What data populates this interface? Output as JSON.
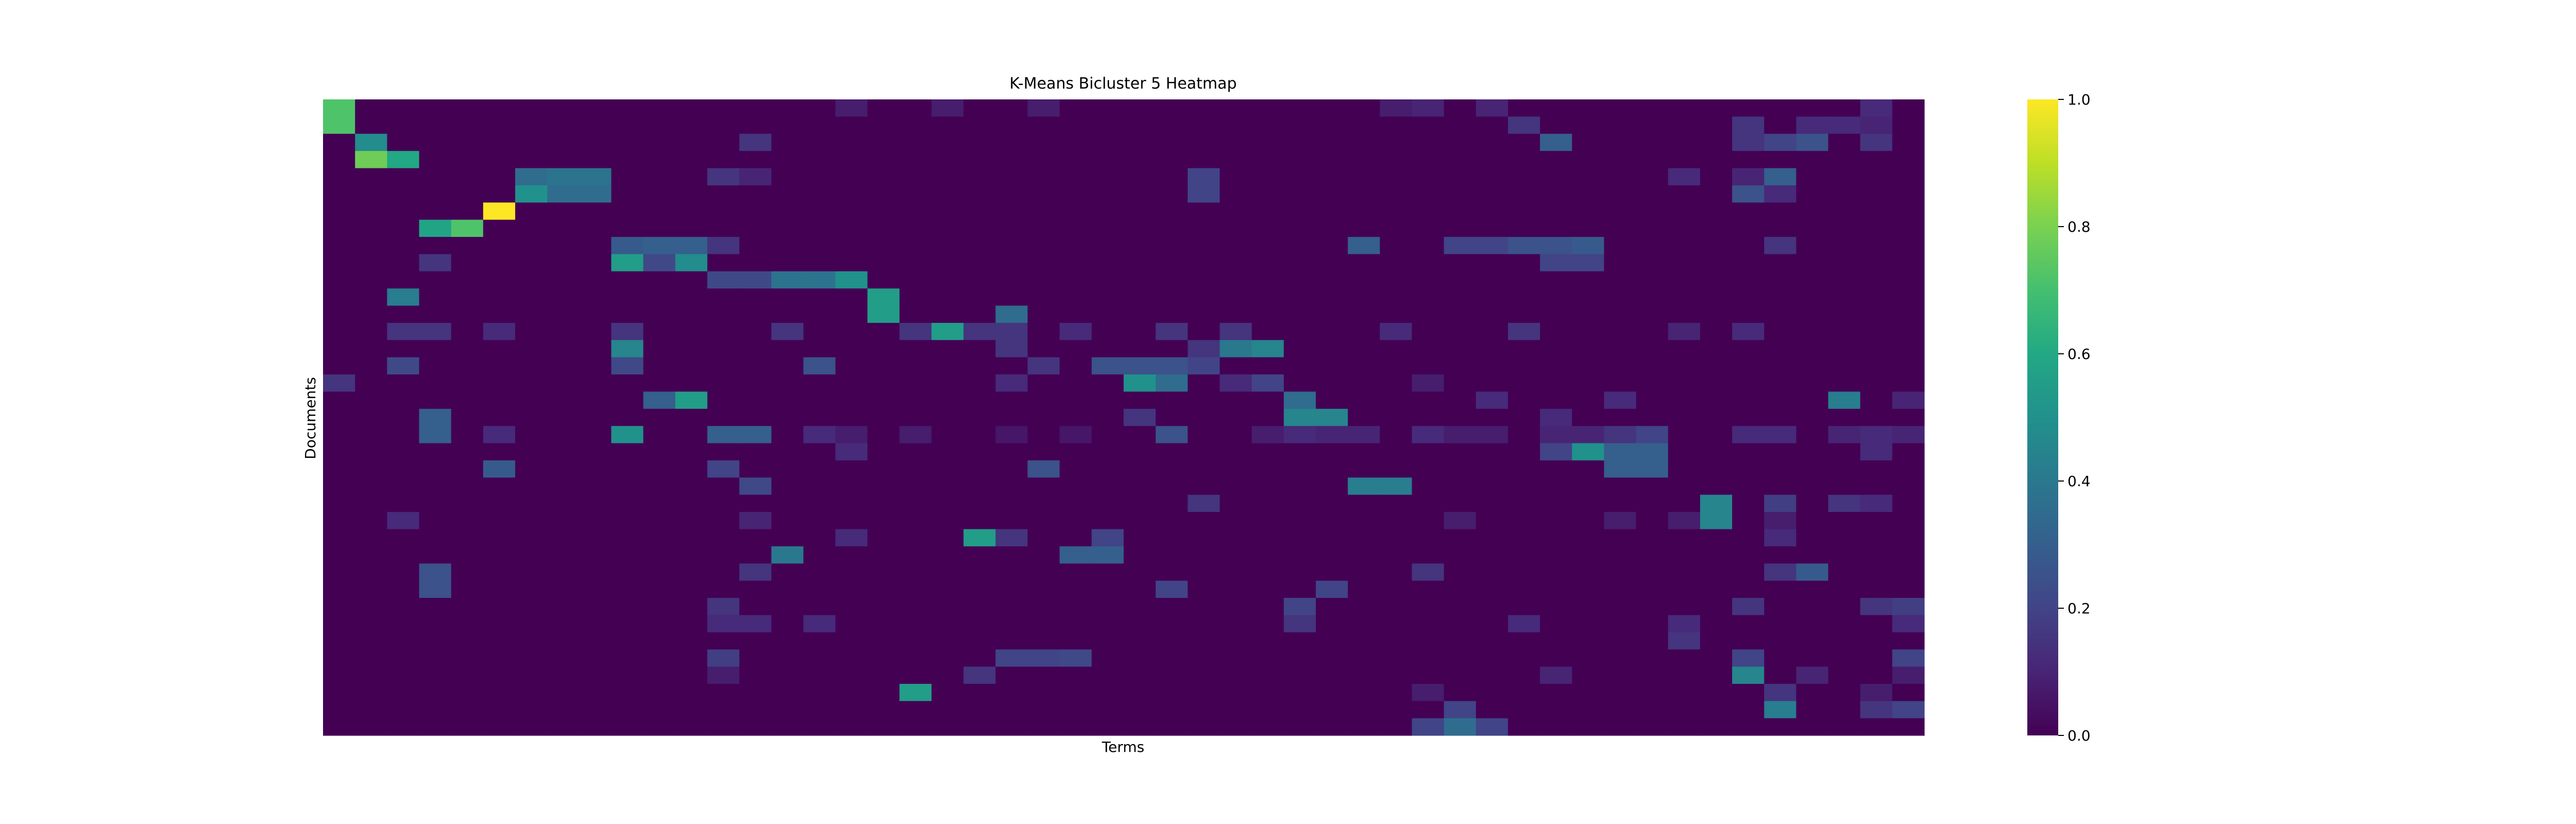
{
  "chart_data": {
    "type": "heatmap",
    "title": "K-Means Bicluster 5 Heatmap",
    "xlabel": "Terms",
    "ylabel": "Documents",
    "n_rows": 37,
    "n_cols": 50,
    "x_ticks": "none",
    "y_ticks": "none",
    "colormap": "viridis",
    "colorbar": {
      "range": [
        0.0,
        1.0
      ],
      "ticks": [
        "0.0",
        "0.2",
        "0.4",
        "0.6",
        "0.8",
        "1.0"
      ]
    },
    "default_value": 0.0,
    "cells": [
      [
        0,
        0,
        0.72
      ],
      [
        1,
        0,
        0.72
      ],
      [
        0,
        16,
        0.08
      ],
      [
        0,
        19,
        0.08
      ],
      [
        0,
        22,
        0.08
      ],
      [
        0,
        33,
        0.08
      ],
      [
        0,
        34,
        0.1
      ],
      [
        0,
        36,
        0.1
      ],
      [
        0,
        48,
        0.12
      ],
      [
        1,
        37,
        0.15
      ],
      [
        1,
        44,
        0.15
      ],
      [
        1,
        46,
        0.12
      ],
      [
        1,
        47,
        0.12
      ],
      [
        1,
        48,
        0.1
      ],
      [
        2,
        1,
        0.48
      ],
      [
        2,
        13,
        0.15
      ],
      [
        2,
        38,
        0.3
      ],
      [
        2,
        44,
        0.15
      ],
      [
        2,
        45,
        0.2
      ],
      [
        2,
        46,
        0.25
      ],
      [
        2,
        48,
        0.15
      ],
      [
        3,
        1,
        0.78
      ],
      [
        3,
        2,
        0.6
      ],
      [
        4,
        6,
        0.35
      ],
      [
        4,
        7,
        0.38
      ],
      [
        4,
        8,
        0.38
      ],
      [
        4,
        12,
        0.15
      ],
      [
        4,
        13,
        0.1
      ],
      [
        4,
        27,
        0.2
      ],
      [
        4,
        42,
        0.12
      ],
      [
        4,
        44,
        0.1
      ],
      [
        4,
        45,
        0.3
      ],
      [
        5,
        6,
        0.5
      ],
      [
        5,
        7,
        0.35
      ],
      [
        5,
        8,
        0.35
      ],
      [
        5,
        27,
        0.2
      ],
      [
        5,
        44,
        0.25
      ],
      [
        5,
        45,
        0.12
      ],
      [
        6,
        5,
        1.0
      ],
      [
        7,
        3,
        0.58
      ],
      [
        7,
        4,
        0.72
      ],
      [
        8,
        9,
        0.28
      ],
      [
        8,
        10,
        0.3
      ],
      [
        8,
        11,
        0.3
      ],
      [
        8,
        12,
        0.15
      ],
      [
        8,
        32,
        0.3
      ],
      [
        8,
        35,
        0.2
      ],
      [
        8,
        36,
        0.2
      ],
      [
        8,
        37,
        0.25
      ],
      [
        8,
        38,
        0.25
      ],
      [
        8,
        39,
        0.28
      ],
      [
        8,
        45,
        0.15
      ],
      [
        9,
        3,
        0.15
      ],
      [
        9,
        9,
        0.55
      ],
      [
        9,
        10,
        0.22
      ],
      [
        9,
        11,
        0.48
      ],
      [
        9,
        38,
        0.2
      ],
      [
        9,
        39,
        0.2
      ],
      [
        10,
        12,
        0.22
      ],
      [
        10,
        13,
        0.22
      ],
      [
        10,
        14,
        0.38
      ],
      [
        10,
        15,
        0.38
      ],
      [
        10,
        16,
        0.5
      ],
      [
        11,
        2,
        0.42
      ],
      [
        11,
        17,
        0.55
      ],
      [
        12,
        17,
        0.55
      ],
      [
        12,
        21,
        0.35
      ],
      [
        13,
        2,
        0.15
      ],
      [
        13,
        3,
        0.15
      ],
      [
        13,
        5,
        0.12
      ],
      [
        13,
        9,
        0.15
      ],
      [
        13,
        14,
        0.15
      ],
      [
        13,
        18,
        0.15
      ],
      [
        13,
        19,
        0.55
      ],
      [
        13,
        20,
        0.15
      ],
      [
        13,
        21,
        0.15
      ],
      [
        13,
        23,
        0.12
      ],
      [
        13,
        26,
        0.15
      ],
      [
        13,
        28,
        0.15
      ],
      [
        13,
        33,
        0.12
      ],
      [
        13,
        37,
        0.15
      ],
      [
        13,
        42,
        0.1
      ],
      [
        13,
        44,
        0.12
      ],
      [
        14,
        9,
        0.45
      ],
      [
        14,
        21,
        0.15
      ],
      [
        14,
        27,
        0.15
      ],
      [
        14,
        28,
        0.4
      ],
      [
        14,
        29,
        0.45
      ],
      [
        15,
        2,
        0.22
      ],
      [
        15,
        9,
        0.22
      ],
      [
        15,
        15,
        0.25
      ],
      [
        15,
        22,
        0.15
      ],
      [
        15,
        24,
        0.25
      ],
      [
        15,
        25,
        0.25
      ],
      [
        15,
        26,
        0.25
      ],
      [
        15,
        27,
        0.2
      ],
      [
        16,
        0,
        0.15
      ],
      [
        16,
        21,
        0.12
      ],
      [
        16,
        25,
        0.5
      ],
      [
        16,
        26,
        0.35
      ],
      [
        16,
        28,
        0.12
      ],
      [
        16,
        29,
        0.2
      ],
      [
        16,
        34,
        0.08
      ],
      [
        17,
        10,
        0.3
      ],
      [
        17,
        11,
        0.55
      ],
      [
        17,
        30,
        0.35
      ],
      [
        17,
        36,
        0.12
      ],
      [
        17,
        40,
        0.12
      ],
      [
        17,
        47,
        0.42
      ],
      [
        17,
        49,
        0.1
      ],
      [
        18,
        3,
        0.3
      ],
      [
        18,
        25,
        0.15
      ],
      [
        18,
        30,
        0.45
      ],
      [
        18,
        31,
        0.45
      ],
      [
        18,
        38,
        0.12
      ],
      [
        19,
        3,
        0.3
      ],
      [
        19,
        5,
        0.12
      ],
      [
        19,
        9,
        0.5
      ],
      [
        19,
        12,
        0.3
      ],
      [
        19,
        13,
        0.3
      ],
      [
        19,
        15,
        0.12
      ],
      [
        19,
        16,
        0.08
      ],
      [
        19,
        18,
        0.08
      ],
      [
        19,
        21,
        0.06
      ],
      [
        19,
        23,
        0.06
      ],
      [
        19,
        26,
        0.25
      ],
      [
        19,
        29,
        0.08
      ],
      [
        19,
        30,
        0.12
      ],
      [
        19,
        31,
        0.1
      ],
      [
        19,
        32,
        0.1
      ],
      [
        19,
        34,
        0.12
      ],
      [
        19,
        35,
        0.08
      ],
      [
        19,
        36,
        0.08
      ],
      [
        19,
        38,
        0.1
      ],
      [
        19,
        39,
        0.1
      ],
      [
        19,
        40,
        0.15
      ],
      [
        19,
        41,
        0.2
      ],
      [
        19,
        44,
        0.12
      ],
      [
        19,
        45,
        0.12
      ],
      [
        19,
        47,
        0.1
      ],
      [
        19,
        48,
        0.12
      ],
      [
        19,
        49,
        0.1
      ],
      [
        20,
        16,
        0.12
      ],
      [
        20,
        38,
        0.2
      ],
      [
        20,
        39,
        0.5
      ],
      [
        20,
        40,
        0.3
      ],
      [
        20,
        41,
        0.3
      ],
      [
        20,
        48,
        0.12
      ],
      [
        21,
        5,
        0.28
      ],
      [
        21,
        12,
        0.2
      ],
      [
        21,
        22,
        0.25
      ],
      [
        21,
        40,
        0.3
      ],
      [
        21,
        41,
        0.3
      ],
      [
        22,
        13,
        0.22
      ],
      [
        22,
        32,
        0.42
      ],
      [
        22,
        33,
        0.42
      ],
      [
        23,
        27,
        0.15
      ],
      [
        23,
        43,
        0.45
      ],
      [
        23,
        45,
        0.18
      ],
      [
        23,
        47,
        0.15
      ],
      [
        23,
        48,
        0.12
      ],
      [
        24,
        2,
        0.12
      ],
      [
        24,
        13,
        0.1
      ],
      [
        24,
        35,
        0.08
      ],
      [
        24,
        40,
        0.08
      ],
      [
        24,
        42,
        0.08
      ],
      [
        24,
        43,
        0.45
      ],
      [
        24,
        45,
        0.08
      ],
      [
        25,
        16,
        0.12
      ],
      [
        25,
        20,
        0.55
      ],
      [
        25,
        21,
        0.15
      ],
      [
        25,
        24,
        0.2
      ],
      [
        25,
        45,
        0.12
      ],
      [
        26,
        14,
        0.4
      ],
      [
        26,
        23,
        0.3
      ],
      [
        26,
        24,
        0.3
      ],
      [
        27,
        3,
        0.25
      ],
      [
        27,
        13,
        0.15
      ],
      [
        27,
        34,
        0.15
      ],
      [
        27,
        45,
        0.15
      ],
      [
        27,
        46,
        0.28
      ],
      [
        28,
        3,
        0.25
      ],
      [
        28,
        26,
        0.2
      ],
      [
        28,
        31,
        0.2
      ],
      [
        29,
        12,
        0.15
      ],
      [
        29,
        30,
        0.2
      ],
      [
        29,
        44,
        0.15
      ],
      [
        29,
        48,
        0.15
      ],
      [
        29,
        49,
        0.18
      ],
      [
        30,
        12,
        0.12
      ],
      [
        30,
        13,
        0.12
      ],
      [
        30,
        15,
        0.12
      ],
      [
        30,
        30,
        0.15
      ],
      [
        30,
        37,
        0.12
      ],
      [
        30,
        42,
        0.12
      ],
      [
        30,
        49,
        0.12
      ],
      [
        31,
        42,
        0.15
      ],
      [
        32,
        12,
        0.18
      ],
      [
        32,
        21,
        0.2
      ],
      [
        32,
        22,
        0.2
      ],
      [
        32,
        23,
        0.22
      ],
      [
        32,
        44,
        0.2
      ],
      [
        32,
        49,
        0.2
      ],
      [
        33,
        12,
        0.08
      ],
      [
        33,
        20,
        0.15
      ],
      [
        33,
        38,
        0.1
      ],
      [
        33,
        44,
        0.45
      ],
      [
        33,
        46,
        0.1
      ],
      [
        33,
        49,
        0.08
      ],
      [
        34,
        18,
        0.55
      ],
      [
        34,
        34,
        0.08
      ],
      [
        34,
        45,
        0.15
      ],
      [
        34,
        48,
        0.08
      ],
      [
        35,
        35,
        0.2
      ],
      [
        35,
        45,
        0.42
      ],
      [
        35,
        48,
        0.15
      ],
      [
        35,
        49,
        0.2
      ],
      [
        36,
        34,
        0.2
      ],
      [
        36,
        35,
        0.35
      ],
      [
        36,
        36,
        0.2
      ]
    ]
  }
}
